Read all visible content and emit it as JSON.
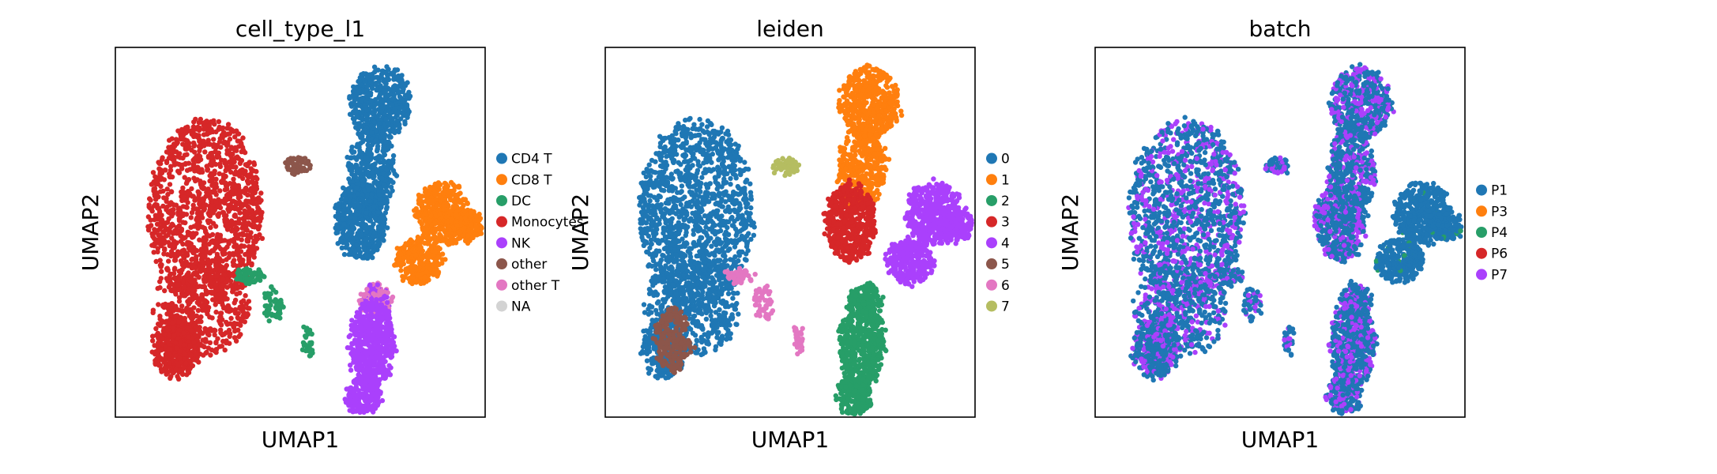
{
  "chart_data": [
    {
      "type": "scatter",
      "title": "cell_type_l1",
      "xlabel": "UMAP1",
      "ylabel": "UMAP2",
      "xticks": [],
      "yticks": [],
      "grid": false,
      "legend_placement": "right, outside plot",
      "series": [
        {
          "name": "CD4 T",
          "color": "#1f77b4"
        },
        {
          "name": "CD8 T",
          "color": "#ff7f0e"
        },
        {
          "name": "DC",
          "color": "#279e68"
        },
        {
          "name": "Monocytes",
          "color": "#d62728"
        },
        {
          "name": "NK",
          "color": "#aa40fc"
        },
        {
          "name": "other",
          "color": "#8c564b"
        },
        {
          "name": "other T",
          "color": "#e377c2"
        },
        {
          "name": "NA",
          "color": "#d3d3d3"
        }
      ]
    },
    {
      "type": "scatter",
      "title": "leiden",
      "xlabel": "UMAP1",
      "ylabel": "UMAP2",
      "xticks": [],
      "yticks": [],
      "grid": false,
      "legend_placement": "right, outside plot",
      "series": [
        {
          "name": "0",
          "color": "#1f77b4"
        },
        {
          "name": "1",
          "color": "#ff7f0e"
        },
        {
          "name": "2",
          "color": "#279e68"
        },
        {
          "name": "3",
          "color": "#d62728"
        },
        {
          "name": "4",
          "color": "#aa40fc"
        },
        {
          "name": "5",
          "color": "#8c564b"
        },
        {
          "name": "6",
          "color": "#e377c2"
        },
        {
          "name": "7",
          "color": "#b5bd61"
        }
      ]
    },
    {
      "type": "scatter",
      "title": "batch",
      "xlabel": "UMAP1",
      "ylabel": "UMAP2",
      "xticks": [],
      "yticks": [],
      "grid": false,
      "legend_placement": "right, outside plot",
      "series": [
        {
          "name": "P1",
          "color": "#1f77b4"
        },
        {
          "name": "P3",
          "color": "#ff7f0e"
        },
        {
          "name": "P4",
          "color": "#279e68"
        },
        {
          "name": "P6",
          "color": "#d62728"
        },
        {
          "name": "P7",
          "color": "#aa40fc"
        }
      ]
    }
  ]
}
